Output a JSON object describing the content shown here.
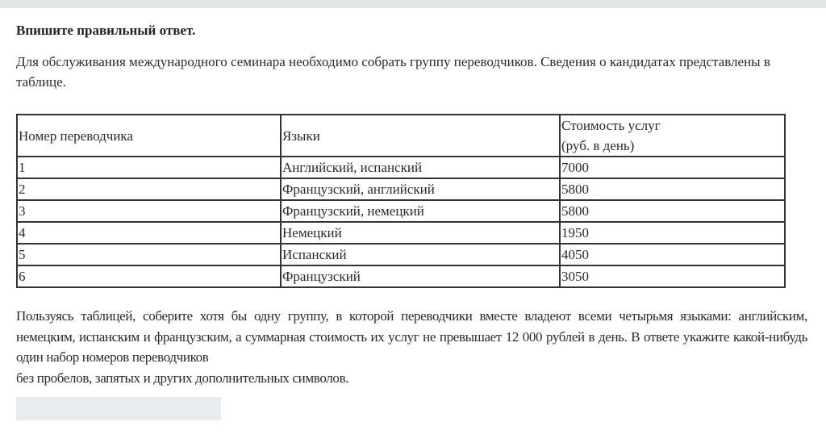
{
  "title": "Впишите правильный ответ.",
  "intro": "Для обслуживания международного семинара необходимо собрать группу переводчиков. Сведения о кандидатах представлены в таблице.",
  "table": {
    "headers": [
      "Номер переводчика",
      "Языки",
      "Стоимость услуг",
      "(руб. в день)"
    ],
    "rows": [
      [
        "1",
        "Английский, испанский",
        "7000"
      ],
      [
        "2",
        "Французский, английский",
        "5800"
      ],
      [
        "3",
        "Французский, немецкий",
        "5800"
      ],
      [
        "4",
        "Немецкий",
        "1950"
      ],
      [
        "5",
        "Испанский",
        "4050"
      ],
      [
        "6",
        "Французский",
        "3050"
      ]
    ]
  },
  "task": {
    "line1": "Пользуясь таблицей, соберите хотя бы одну группу, в которой переводчики вместе владеют всеми четырьмя языками: английским, немецким, испанским и французским, а суммарная стоимость их услуг не превышает 12 000 рублей в день. В ответе укажите какой-нибудь один набор номеров переводчиков",
    "line2": "без пробелов, запятых и других дополнительных символов."
  },
  "answer": {
    "value": ""
  }
}
